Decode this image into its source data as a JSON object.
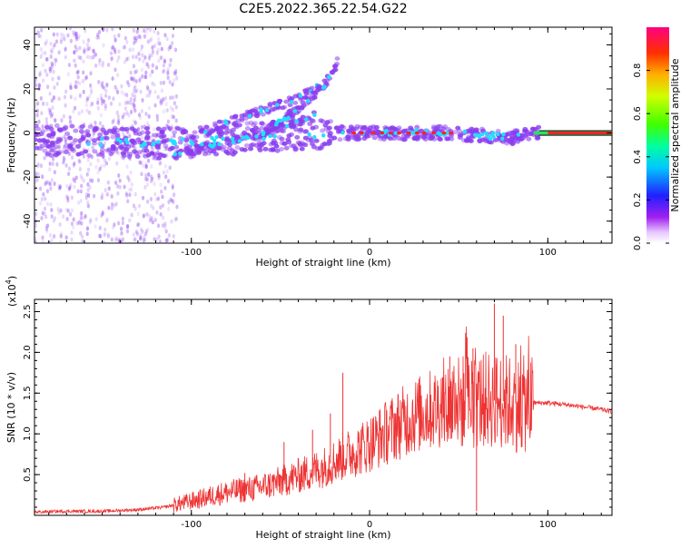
{
  "title": "C2E5.2022.365.22.54.G22",
  "colors": {
    "snr_line": "#ee3333",
    "spectro_points": "#8a3cf0",
    "signal_core": "#1fe0ff",
    "signal_peak": "#ff2222"
  },
  "chart_data": [
    {
      "type": "heatmap",
      "xlabel": "Height of straight line (km)",
      "ylabel": "Frequency (Hz)",
      "xlim": [
        -188,
        136
      ],
      "ylim": [
        -50,
        48
      ],
      "x_ticks": [
        -100,
        0,
        100
      ],
      "x_tick_labels": [
        "-100",
        "0",
        "100"
      ],
      "y_ticks": [
        -40,
        -20,
        0,
        20,
        40
      ],
      "y_tick_labels": [
        "-40",
        "-20",
        "0",
        "20",
        "40"
      ],
      "colorbar": {
        "label": "Normalized spectral amplitude",
        "range": [
          0,
          1
        ],
        "ticks": [
          0.0,
          0.2,
          0.4,
          0.6,
          0.8
        ],
        "tick_labels": [
          "0.0",
          "0.2",
          "0.4",
          "0.6",
          "0.8"
        ]
      },
      "dominant_track": [
        {
          "x": -188,
          "y": -3
        },
        {
          "x": -150,
          "y": -4
        },
        {
          "x": -120,
          "y": -5
        },
        {
          "x": -100,
          "y": -4
        },
        {
          "x": -80,
          "y": -3
        },
        {
          "x": -60,
          "y": -2
        },
        {
          "x": -40,
          "y": -1
        },
        {
          "x": -20,
          "y": 0
        },
        {
          "x": 0,
          "y": 0
        },
        {
          "x": 20,
          "y": 0
        },
        {
          "x": 40,
          "y": 0
        },
        {
          "x": 60,
          "y": -1
        },
        {
          "x": 80,
          "y": -2
        },
        {
          "x": 95,
          "y": 0
        },
        {
          "x": 136,
          "y": 0
        }
      ],
      "secondary_tracks": [
        [
          {
            "x": -110,
            "y": -10
          },
          {
            "x": -90,
            "y": -6
          },
          {
            "x": -70,
            "y": -2
          },
          {
            "x": -50,
            "y": 3
          },
          {
            "x": -30,
            "y": 8
          }
        ],
        [
          {
            "x": -100,
            "y": -2
          },
          {
            "x": -80,
            "y": 5
          },
          {
            "x": -60,
            "y": 10
          },
          {
            "x": -40,
            "y": 16
          },
          {
            "x": -28,
            "y": 22
          }
        ],
        [
          {
            "x": -60,
            "y": 0
          },
          {
            "x": -45,
            "y": 8
          },
          {
            "x": -35,
            "y": 15
          },
          {
            "x": -25,
            "y": 22
          },
          {
            "x": -18,
            "y": 32
          }
        ]
      ]
    },
    {
      "type": "line",
      "xlabel": "Height of straight line (km)",
      "ylabel": "SNR (10 * v/v)",
      "y_scale_label": "(x10",
      "y_scale_exponent": "4",
      "y_scale_suffix": ")",
      "xlim": [
        -188,
        136
      ],
      "ylim": [
        0,
        2.65
      ],
      "x_ticks": [
        -100,
        0,
        100
      ],
      "x_tick_labels": [
        "-100",
        "0",
        "100"
      ],
      "y_ticks": [
        0.5,
        1.0,
        1.5,
        2.0,
        2.5
      ],
      "y_tick_labels": [
        "0.5",
        "1.0",
        "1.5",
        "2.0",
        "2.5"
      ],
      "series": [
        {
          "x": [
            -188,
            -170,
            -150,
            -130,
            -115,
            -105,
            -95,
            -85,
            -75,
            -65,
            -55,
            -45,
            -35,
            -25,
            -15,
            -5,
            5,
            15,
            25,
            35,
            45,
            55,
            65,
            75,
            85,
            92,
            100,
            110,
            120,
            130,
            136
          ],
          "y": [
            0.04,
            0.05,
            0.05,
            0.07,
            0.1,
            0.15,
            0.2,
            0.26,
            0.3,
            0.33,
            0.38,
            0.45,
            0.52,
            0.6,
            0.72,
            0.82,
            0.95,
            1.1,
            1.22,
            1.3,
            1.36,
            1.4,
            1.42,
            1.4,
            1.36,
            1.38,
            1.38,
            1.36,
            1.33,
            1.3,
            1.27
          ]
        }
      ],
      "spikes": [
        {
          "x": -70,
          "y": 0.52
        },
        {
          "x": -48,
          "y": 0.9
        },
        {
          "x": -32,
          "y": 1.05
        },
        {
          "x": -22,
          "y": 1.25
        },
        {
          "x": -15,
          "y": 1.75
        },
        {
          "x": 45,
          "y": 1.95
        },
        {
          "x": 58,
          "y": 2.05
        },
        {
          "x": 70,
          "y": 2.6
        },
        {
          "x": 75,
          "y": 2.45
        },
        {
          "x": 82,
          "y": 2.1
        },
        {
          "x": 60,
          "y": 0.05
        }
      ]
    }
  ]
}
